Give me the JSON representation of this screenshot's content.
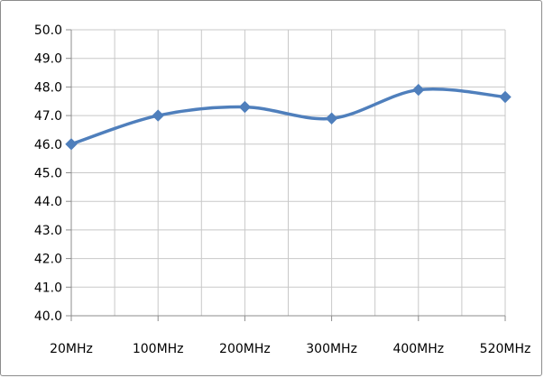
{
  "chart_data": {
    "type": "line",
    "title": "",
    "xlabel": "",
    "ylabel": "",
    "categories": [
      "20MHz",
      "100MHz",
      "200MHz",
      "300MHz",
      "400MHz",
      "520MHz"
    ],
    "series": [
      {
        "values": [
          46.0,
          47.0,
          47.3,
          46.9,
          47.9,
          47.65
        ],
        "color": "#4f7fbc",
        "marker": "diamond",
        "smooth": true
      }
    ],
    "ylim": [
      40.0,
      50.0
    ],
    "yticks": [
      "40.0",
      "41.0",
      "42.0",
      "43.0",
      "44.0",
      "45.0",
      "46.0",
      "47.0",
      "48.0",
      "49.0",
      "50.0"
    ],
    "grid": true,
    "legend": "none"
  }
}
